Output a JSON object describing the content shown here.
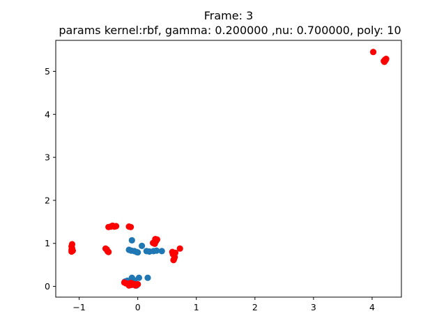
{
  "title_line1": "Frame: 3",
  "title_line2": "params kernel:rbf, gamma: 0.200000 ,nu: 0.700000, poly: 10",
  "chart_data": {
    "type": "scatter",
    "xlim": [
      -1.4,
      4.5
    ],
    "ylim": [
      -0.25,
      5.72
    ],
    "xticks": [
      -1,
      0,
      1,
      2,
      3,
      4
    ],
    "yticks": [
      0,
      1,
      2,
      3,
      4,
      5
    ],
    "xtick_labels": [
      "−1",
      "0",
      "1",
      "2",
      "3",
      "4"
    ],
    "ytick_labels": [
      "0",
      "1",
      "2",
      "3",
      "4",
      "5"
    ],
    "grid": false,
    "series": [
      {
        "color": "#1f77b4",
        "points": [
          [
            -0.22,
            0.11
          ],
          [
            -0.18,
            0.13
          ],
          [
            -0.14,
            0.12
          ],
          [
            -0.1,
            0.2
          ],
          [
            -0.06,
            0.14
          ],
          [
            0.02,
            0.2
          ],
          [
            -0.12,
            0.03
          ],
          [
            -0.07,
            0.04
          ],
          [
            -0.02,
            0.02
          ],
          [
            0.17,
            0.2
          ],
          [
            -0.1,
            1.07
          ],
          [
            -0.15,
            0.85
          ],
          [
            -0.11,
            0.83
          ],
          [
            -0.06,
            0.82
          ],
          [
            -0.02,
            0.8
          ],
          [
            0.0,
            0.79
          ],
          [
            0.07,
            0.94
          ],
          [
            0.15,
            0.82
          ],
          [
            0.2,
            0.81
          ],
          [
            0.27,
            0.82
          ],
          [
            0.32,
            0.83
          ],
          [
            0.41,
            0.82
          ]
        ]
      },
      {
        "color": "#ff0000",
        "points": [
          [
            -1.12,
            0.98
          ],
          [
            -1.13,
            0.93
          ],
          [
            -1.12,
            0.88
          ],
          [
            -1.13,
            0.85
          ],
          [
            -1.11,
            0.83
          ],
          [
            -1.13,
            0.81
          ],
          [
            -0.55,
            0.88
          ],
          [
            -0.53,
            0.86
          ],
          [
            -0.52,
            0.83
          ],
          [
            -0.51,
            0.81
          ],
          [
            -0.5,
            0.8
          ],
          [
            -0.5,
            1.38
          ],
          [
            -0.46,
            1.39
          ],
          [
            -0.43,
            1.41
          ],
          [
            -0.4,
            1.39
          ],
          [
            -0.37,
            1.4
          ],
          [
            -0.15,
            1.39
          ],
          [
            -0.12,
            1.38
          ],
          [
            0.26,
            1.01
          ],
          [
            0.29,
            0.99
          ],
          [
            0.31,
            1.05
          ],
          [
            0.33,
            1.09
          ],
          [
            0.3,
            1.1
          ],
          [
            0.28,
            1.03
          ],
          [
            0.59,
            0.8
          ],
          [
            0.6,
            0.75
          ],
          [
            0.62,
            0.72
          ],
          [
            0.63,
            0.68
          ],
          [
            0.62,
            0.64
          ],
          [
            0.61,
            0.61
          ],
          [
            0.64,
            0.78
          ],
          [
            0.72,
            0.88
          ],
          [
            -0.23,
            0.09
          ],
          [
            -0.2,
            0.07
          ],
          [
            -0.17,
            0.06
          ],
          [
            -0.14,
            0.05
          ],
          [
            -0.12,
            0.08
          ],
          [
            -0.1,
            0.04
          ],
          [
            -0.08,
            0.06
          ],
          [
            -0.05,
            0.05
          ],
          [
            -0.02,
            0.04
          ],
          [
            0.0,
            0.05
          ],
          [
            -0.15,
            0.02
          ],
          [
            -0.04,
            0.02
          ],
          [
            4.02,
            5.45
          ],
          [
            4.2,
            5.24
          ],
          [
            4.22,
            5.27
          ],
          [
            4.23,
            5.26
          ],
          [
            4.24,
            5.29
          ],
          [
            4.21,
            5.22
          ]
        ]
      }
    ]
  }
}
